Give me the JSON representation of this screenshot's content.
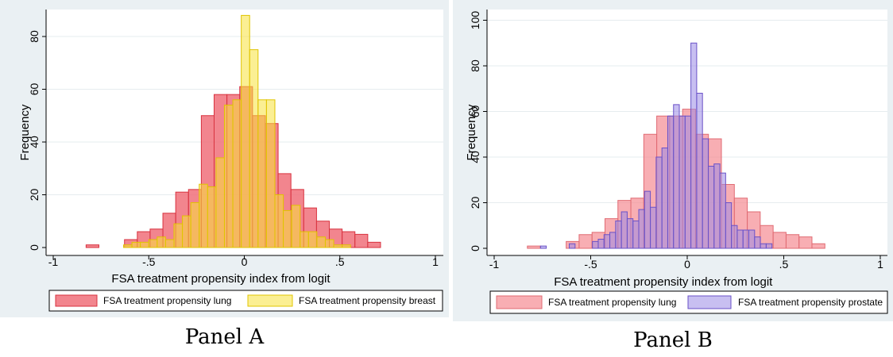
{
  "captions": {
    "a": "Panel A",
    "b": "Panel B"
  },
  "chart_data": [
    {
      "type": "bar",
      "panel": "A",
      "xlabel": "FSA treatment propensity index from logit",
      "ylabel": "Frequency",
      "xlim": [
        -1,
        1
      ],
      "ylim": [
        0,
        90
      ],
      "xticks": [
        {
          "v": -1,
          "label": "-1"
        },
        {
          "v": -0.5,
          "label": "-.5"
        },
        {
          "v": 0,
          "label": "0"
        },
        {
          "v": 0.5,
          "label": ".5"
        },
        {
          "v": 1,
          "label": "1"
        }
      ],
      "yticks": [
        {
          "v": 0,
          "label": "0"
        },
        {
          "v": 20,
          "label": "20"
        },
        {
          "v": 40,
          "label": "40"
        },
        {
          "v": 60,
          "label": "60"
        },
        {
          "v": 80,
          "label": "80"
        }
      ],
      "legend_position": "bottom",
      "series": [
        {
          "name": "FSA treatment propensity lung",
          "fill": "#f0707a",
          "stroke": "#d8323f",
          "opacity": 0.85,
          "bins": [
            {
              "x0": -0.828,
              "x1": -0.761,
              "y": 1
            },
            {
              "x0": -0.627,
              "x1": -0.56,
              "y": 3
            },
            {
              "x0": -0.56,
              "x1": -0.493,
              "y": 6
            },
            {
              "x0": -0.493,
              "x1": -0.426,
              "y": 7
            },
            {
              "x0": -0.426,
              "x1": -0.359,
              "y": 13
            },
            {
              "x0": -0.359,
              "x1": -0.292,
              "y": 21
            },
            {
              "x0": -0.292,
              "x1": -0.225,
              "y": 22
            },
            {
              "x0": -0.225,
              "x1": -0.158,
              "y": 50
            },
            {
              "x0": -0.158,
              "x1": -0.091,
              "y": 58
            },
            {
              "x0": -0.091,
              "x1": -0.024,
              "y": 58
            },
            {
              "x0": -0.024,
              "x1": 0.043,
              "y": 61
            },
            {
              "x0": 0.043,
              "x1": 0.11,
              "y": 50
            },
            {
              "x0": 0.11,
              "x1": 0.177,
              "y": 47
            },
            {
              "x0": 0.177,
              "x1": 0.244,
              "y": 28
            },
            {
              "x0": 0.244,
              "x1": 0.311,
              "y": 22
            },
            {
              "x0": 0.311,
              "x1": 0.378,
              "y": 15
            },
            {
              "x0": 0.378,
              "x1": 0.445,
              "y": 10
            },
            {
              "x0": 0.445,
              "x1": 0.512,
              "y": 7
            },
            {
              "x0": 0.512,
              "x1": 0.579,
              "y": 6
            },
            {
              "x0": 0.579,
              "x1": 0.646,
              "y": 5
            },
            {
              "x0": 0.646,
              "x1": 0.713,
              "y": 2
            }
          ]
        },
        {
          "name": "FSA treatment propensity breast",
          "fill": "#f7e13a",
          "stroke": "#e0c400",
          "opacity": 0.55,
          "bins": [
            {
              "x0": -0.632,
              "x1": -0.588,
              "y": 1
            },
            {
              "x0": -0.588,
              "x1": -0.544,
              "y": 2
            },
            {
              "x0": -0.544,
              "x1": -0.5,
              "y": 2
            },
            {
              "x0": -0.5,
              "x1": -0.456,
              "y": 3
            },
            {
              "x0": -0.456,
              "x1": -0.412,
              "y": 4
            },
            {
              "x0": -0.412,
              "x1": -0.368,
              "y": 3
            },
            {
              "x0": -0.368,
              "x1": -0.324,
              "y": 9
            },
            {
              "x0": -0.324,
              "x1": -0.28,
              "y": 12
            },
            {
              "x0": -0.28,
              "x1": -0.236,
              "y": 17
            },
            {
              "x0": -0.236,
              "x1": -0.192,
              "y": 24
            },
            {
              "x0": -0.192,
              "x1": -0.148,
              "y": 23
            },
            {
              "x0": -0.148,
              "x1": -0.104,
              "y": 34
            },
            {
              "x0": -0.104,
              "x1": -0.06,
              "y": 54
            },
            {
              "x0": -0.06,
              "x1": -0.016,
              "y": 56
            },
            {
              "x0": -0.016,
              "x1": 0.028,
              "y": 88
            },
            {
              "x0": 0.028,
              "x1": 0.072,
              "y": 75
            },
            {
              "x0": 0.072,
              "x1": 0.116,
              "y": 56
            },
            {
              "x0": 0.116,
              "x1": 0.16,
              "y": 56
            },
            {
              "x0": 0.16,
              "x1": 0.204,
              "y": 20
            },
            {
              "x0": 0.204,
              "x1": 0.248,
              "y": 14
            },
            {
              "x0": 0.248,
              "x1": 0.292,
              "y": 16
            },
            {
              "x0": 0.292,
              "x1": 0.336,
              "y": 6
            },
            {
              "x0": 0.336,
              "x1": 0.38,
              "y": 6
            },
            {
              "x0": 0.38,
              "x1": 0.424,
              "y": 4
            },
            {
              "x0": 0.424,
              "x1": 0.468,
              "y": 3
            },
            {
              "x0": 0.468,
              "x1": 0.512,
              "y": 1
            },
            {
              "x0": 0.512,
              "x1": 0.556,
              "y": 1
            }
          ]
        }
      ]
    },
    {
      "type": "bar",
      "panel": "B",
      "xlabel": "FSA treatment propensity index from logit",
      "ylabel": "Frequency",
      "xlim": [
        -1,
        1
      ],
      "ylim": [
        0,
        100
      ],
      "xticks": [
        {
          "v": -1,
          "label": "-1"
        },
        {
          "v": -0.5,
          "label": "-.5"
        },
        {
          "v": 0,
          "label": "0"
        },
        {
          "v": 0.5,
          "label": ".5"
        },
        {
          "v": 1,
          "label": "1"
        }
      ],
      "yticks": [
        {
          "v": 0,
          "label": "0"
        },
        {
          "v": 20,
          "label": "20"
        },
        {
          "v": 40,
          "label": "40"
        },
        {
          "v": 60,
          "label": "60"
        },
        {
          "v": 80,
          "label": "80"
        },
        {
          "v": 100,
          "label": "100"
        }
      ],
      "legend_position": "bottom",
      "series": [
        {
          "name": "FSA treatment propensity lung",
          "fill": "#f58c93",
          "stroke": "#e06b73",
          "opacity": 0.7,
          "bins": [
            {
              "x0": -0.828,
              "x1": -0.761,
              "y": 1
            },
            {
              "x0": -0.627,
              "x1": -0.56,
              "y": 3
            },
            {
              "x0": -0.56,
              "x1": -0.493,
              "y": 6
            },
            {
              "x0": -0.493,
              "x1": -0.426,
              "y": 7
            },
            {
              "x0": -0.426,
              "x1": -0.359,
              "y": 13
            },
            {
              "x0": -0.359,
              "x1": -0.292,
              "y": 21
            },
            {
              "x0": -0.292,
              "x1": -0.225,
              "y": 22
            },
            {
              "x0": -0.225,
              "x1": -0.158,
              "y": 50
            },
            {
              "x0": -0.158,
              "x1": -0.091,
              "y": 58
            },
            {
              "x0": -0.091,
              "x1": -0.024,
              "y": 58
            },
            {
              "x0": -0.024,
              "x1": 0.043,
              "y": 61
            },
            {
              "x0": 0.043,
              "x1": 0.11,
              "y": 50
            },
            {
              "x0": 0.11,
              "x1": 0.177,
              "y": 48
            },
            {
              "x0": 0.177,
              "x1": 0.244,
              "y": 28
            },
            {
              "x0": 0.244,
              "x1": 0.311,
              "y": 22
            },
            {
              "x0": 0.311,
              "x1": 0.378,
              "y": 16
            },
            {
              "x0": 0.378,
              "x1": 0.445,
              "y": 10
            },
            {
              "x0": 0.445,
              "x1": 0.512,
              "y": 7
            },
            {
              "x0": 0.512,
              "x1": 0.579,
              "y": 6
            },
            {
              "x0": 0.579,
              "x1": 0.646,
              "y": 5
            },
            {
              "x0": 0.646,
              "x1": 0.713,
              "y": 2
            }
          ]
        },
        {
          "name": "FSA treatment propensity prostate",
          "fill": "#9a8be6",
          "stroke": "#6a52c8",
          "opacity": 0.55,
          "bins": [
            {
              "x0": -0.76,
              "x1": -0.73,
              "y": 1
            },
            {
              "x0": -0.611,
              "x1": -0.581,
              "y": 2
            },
            {
              "x0": -0.491,
              "x1": -0.461,
              "y": 3
            },
            {
              "x0": -0.461,
              "x1": -0.431,
              "y": 4
            },
            {
              "x0": -0.431,
              "x1": -0.401,
              "y": 6
            },
            {
              "x0": -0.401,
              "x1": -0.371,
              "y": 7
            },
            {
              "x0": -0.371,
              "x1": -0.341,
              "y": 12
            },
            {
              "x0": -0.341,
              "x1": -0.311,
              "y": 16
            },
            {
              "x0": -0.311,
              "x1": -0.281,
              "y": 13
            },
            {
              "x0": -0.281,
              "x1": -0.251,
              "y": 12
            },
            {
              "x0": -0.251,
              "x1": -0.221,
              "y": 17
            },
            {
              "x0": -0.221,
              "x1": -0.191,
              "y": 25
            },
            {
              "x0": -0.191,
              "x1": -0.161,
              "y": 18
            },
            {
              "x0": -0.161,
              "x1": -0.131,
              "y": 40
            },
            {
              "x0": -0.131,
              "x1": -0.101,
              "y": 44
            },
            {
              "x0": -0.101,
              "x1": -0.071,
              "y": 58
            },
            {
              "x0": -0.071,
              "x1": -0.041,
              "y": 63
            },
            {
              "x0": -0.041,
              "x1": -0.011,
              "y": 58
            },
            {
              "x0": -0.011,
              "x1": 0.019,
              "y": 58
            },
            {
              "x0": 0.019,
              "x1": 0.049,
              "y": 90
            },
            {
              "x0": 0.049,
              "x1": 0.079,
              "y": 68
            },
            {
              "x0": 0.079,
              "x1": 0.109,
              "y": 48
            },
            {
              "x0": 0.109,
              "x1": 0.139,
              "y": 36
            },
            {
              "x0": 0.139,
              "x1": 0.169,
              "y": 37
            },
            {
              "x0": 0.169,
              "x1": 0.199,
              "y": 33
            },
            {
              "x0": 0.199,
              "x1": 0.229,
              "y": 20
            },
            {
              "x0": 0.229,
              "x1": 0.259,
              "y": 10
            },
            {
              "x0": 0.259,
              "x1": 0.289,
              "y": 8
            },
            {
              "x0": 0.289,
              "x1": 0.319,
              "y": 8
            },
            {
              "x0": 0.319,
              "x1": 0.349,
              "y": 8
            },
            {
              "x0": 0.349,
              "x1": 0.379,
              "y": 5
            },
            {
              "x0": 0.379,
              "x1": 0.409,
              "y": 2
            },
            {
              "x0": 0.409,
              "x1": 0.439,
              "y": 2
            }
          ]
        }
      ]
    }
  ]
}
